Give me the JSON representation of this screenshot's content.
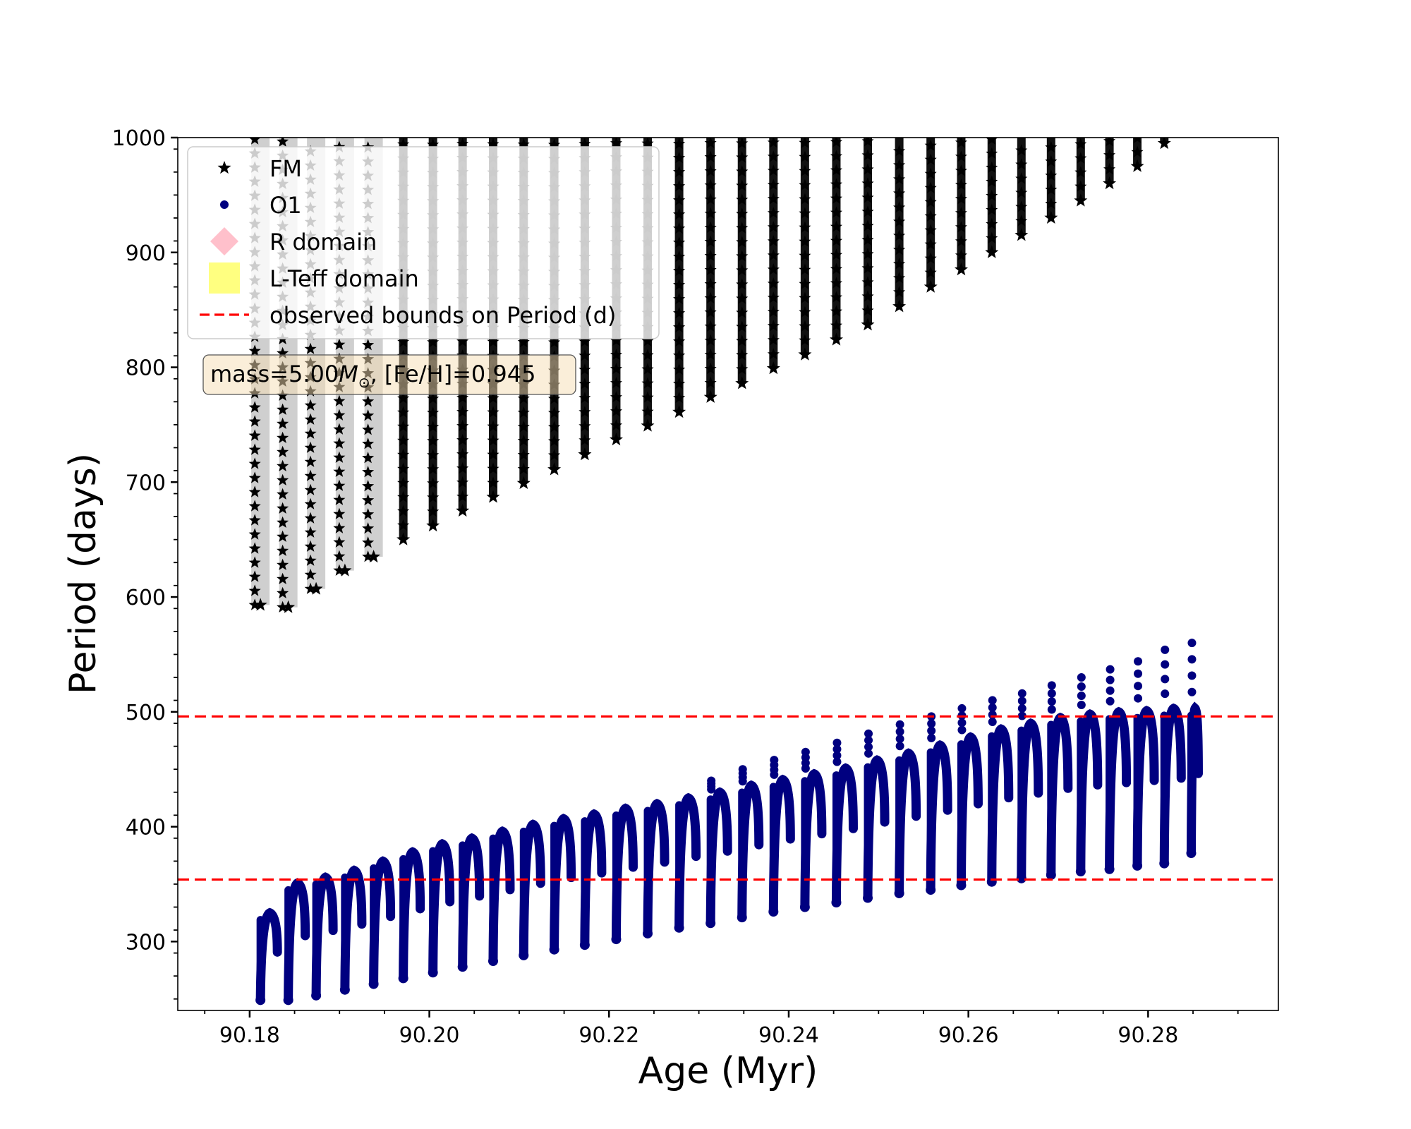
{
  "chart_data": {
    "type": "scatter",
    "title": "",
    "xlabel": "Age (Myr)",
    "ylabel": "Period (days)",
    "xlim": [
      90.172,
      90.2945
    ],
    "ylim": [
      240,
      1000
    ],
    "xticks": [
      "90.18",
      "90.20",
      "90.22",
      "90.24",
      "90.26",
      "90.28"
    ],
    "yticks": [
      "300",
      "400",
      "500",
      "600",
      "700",
      "800",
      "900",
      "1000"
    ],
    "info_box": {
      "mass_prefix": "mass=5.00",
      "mass_symbol": "M",
      "mass_sub": "⊙",
      "rest": ", [Fe/H]=0.945"
    },
    "legend": {
      "placement": "top-left",
      "entries": [
        {
          "label": "FM",
          "marker": "star",
          "color": "#000000"
        },
        {
          "label": "O1",
          "marker": "circle",
          "color": "#000080"
        },
        {
          "label": "R domain",
          "marker": "diamond",
          "color": "#ffc0cb"
        },
        {
          "label": "L-Teff domain",
          "marker": "square",
          "color": "#ffff80"
        },
        {
          "label": "observed bounds on Period (d)",
          "marker": "dashed-line",
          "color": "#ff0000"
        }
      ]
    },
    "hlines": [
      {
        "name": "observed bounds on Period (d)",
        "y": 496,
        "color": "#ff0000",
        "style": "dashed"
      },
      {
        "name": "observed bounds on Period (d)",
        "y": 354,
        "color": "#ff0000",
        "style": "dashed"
      }
    ],
    "series": [
      {
        "name": "FM",
        "marker": "star",
        "color": "#000000",
        "x": [
          90.1812,
          90.1843,
          90.1874,
          90.1906,
          90.1938,
          90.1971,
          90.2004,
          90.2037,
          90.2071,
          90.2105,
          90.2139,
          90.2173,
          90.2208,
          90.2243,
          90.2278,
          90.2313,
          90.2348,
          90.2383,
          90.2418,
          90.2453,
          90.2488,
          90.2523,
          90.2558,
          90.2592,
          90.2626,
          90.2659,
          90.2692,
          90.2725,
          90.2757,
          90.2788,
          90.2818
        ],
        "ymin": [
          593,
          591,
          607,
          623,
          635,
          650,
          662,
          675,
          687,
          699,
          711,
          724,
          737,
          749,
          761,
          774,
          786,
          799,
          811,
          824,
          837,
          853,
          870,
          885,
          900,
          915,
          930,
          945,
          960,
          975,
          995
        ],
        "ymax": [
          1000,
          1000,
          1000,
          1000,
          1000,
          1000,
          1000,
          1000,
          1000,
          1000,
          1000,
          1000,
          1000,
          1000,
          1000,
          1000,
          1000,
          1000,
          1000,
          1000,
          1000,
          1000,
          1000,
          1000,
          1000,
          1000,
          1000,
          1000,
          1000,
          1000,
          1000
        ]
      },
      {
        "name": "O1",
        "marker": "circle",
        "color": "#000080",
        "x": [
          90.1812,
          90.1843,
          90.1874,
          90.1906,
          90.1938,
          90.1971,
          90.2004,
          90.2037,
          90.2071,
          90.2105,
          90.2139,
          90.2173,
          90.2208,
          90.2243,
          90.2278,
          90.2313,
          90.2348,
          90.2383,
          90.2418,
          90.2453,
          90.2488,
          90.2523,
          90.2558,
          90.2592,
          90.2626,
          90.2659,
          90.2692,
          90.2725,
          90.2757,
          90.2788,
          90.2818,
          90.2848
        ],
        "ymin": [
          249,
          249,
          253,
          258,
          263,
          268,
          273,
          278,
          283,
          288,
          293,
          297,
          302,
          307,
          312,
          316,
          321,
          326,
          330,
          334,
          338,
          342,
          345,
          349,
          352,
          355,
          358,
          361,
          363,
          366,
          368,
          377
        ],
        "ymax": [
          325,
          351,
          356,
          362,
          370,
          378,
          385,
          390,
          396,
          402,
          407,
          411,
          416,
          420,
          425,
          430,
          436,
          441,
          446,
          451,
          458,
          464,
          471,
          478,
          485,
          490,
          495,
          498,
          500,
          501,
          503,
          503
        ],
        "spikes": [
          0,
          0,
          0,
          0,
          0,
          0,
          0,
          0,
          0,
          0,
          0,
          0,
          0,
          0,
          0,
          440,
          450,
          458,
          465,
          473,
          481,
          489,
          496,
          503,
          510,
          516,
          523,
          530,
          537,
          544,
          554,
          560
        ]
      }
    ]
  }
}
